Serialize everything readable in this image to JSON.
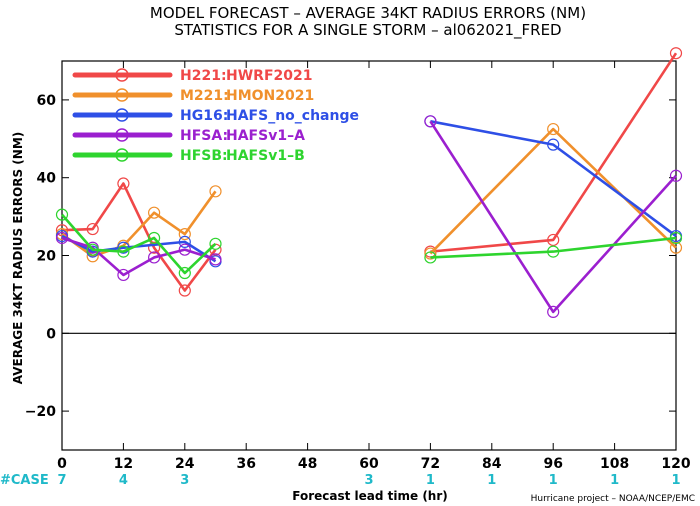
{
  "title_line1": "MODEL FORECAST – AVERAGE 34KT RADIUS ERRORS (NM)",
  "title_line2": "STATISTICS FOR A SINGLE STORM – al062021_FRED",
  "credit": "Hurricane project – NOAA/NCEP/EMC",
  "case_prefix": "#CASE",
  "chart_data": {
    "type": "line",
    "xlabel": "Forecast lead time (hr)",
    "ylabel": "AVERAGE 34KT RADIUS ERRORS (NM)",
    "xlim": [
      0,
      120
    ],
    "ylim": [
      -30,
      70
    ],
    "xticks": [
      0,
      12,
      24,
      36,
      48,
      60,
      72,
      84,
      96,
      108,
      120
    ],
    "yticks": [
      -20,
      0,
      20,
      40,
      60
    ],
    "zero_line": true,
    "grid": false,
    "legend_position": "top-left",
    "cases": [
      {
        "x": 0,
        "label": "7"
      },
      {
        "x": 12,
        "label": "4"
      },
      {
        "x": 24,
        "label": "3"
      },
      {
        "x": 60,
        "label": "3"
      },
      {
        "x": 72,
        "label": "1"
      },
      {
        "x": 84,
        "label": "1"
      },
      {
        "x": 96,
        "label": "1"
      },
      {
        "x": 108,
        "label": "1"
      },
      {
        "x": 120,
        "label": "1"
      }
    ],
    "series": [
      {
        "name": "H221:",
        "desc": "HWRF2021",
        "color": "#f04848",
        "segments": [
          [
            [
              0,
              26.5
            ],
            [
              6,
              26.8
            ],
            [
              12,
              38.5
            ],
            [
              18,
              22
            ],
            [
              24,
              11
            ],
            [
              30,
              21.5
            ]
          ],
          [
            [
              72,
              21
            ],
            [
              96,
              24
            ],
            [
              120,
              72
            ]
          ]
        ]
      },
      {
        "name": "M221:",
        "desc": "HMON2021",
        "color": "#f0902c",
        "segments": [
          [
            [
              0,
              25.5
            ],
            [
              6,
              19.8
            ],
            [
              12,
              22.5
            ],
            [
              18,
              31
            ],
            [
              24,
              25.5
            ],
            [
              30,
              36.5
            ]
          ],
          [
            [
              72,
              20.5
            ],
            [
              96,
              52.5
            ],
            [
              120,
              22
            ]
          ]
        ]
      },
      {
        "name": "HG16:",
        "desc": "HAFS_no_change",
        "color": "#2e4fe6",
        "segments": [
          [
            [
              0,
              25
            ],
            [
              6,
              21
            ],
            [
              12,
              22
            ],
            [
              24,
              23.5
            ],
            [
              30,
              18.5
            ]
          ],
          [
            [
              72,
              54.5
            ],
            [
              96,
              48.5
            ],
            [
              120,
              25
            ]
          ]
        ]
      },
      {
        "name": "HFSA:",
        "desc": "HAFSv1–A",
        "color": "#9b1fcf",
        "segments": [
          [
            [
              0,
              24.5
            ],
            [
              6,
              22
            ],
            [
              12,
              15
            ],
            [
              18,
              19.5
            ],
            [
              24,
              21.5
            ],
            [
              30,
              19
            ]
          ],
          [
            [
              72,
              54.5
            ],
            [
              96,
              5.5
            ],
            [
              120,
              40.5
            ]
          ]
        ]
      },
      {
        "name": "HFSB:",
        "desc": "HAFSv1–B",
        "color": "#2ed42e",
        "segments": [
          [
            [
              0,
              30.5
            ],
            [
              6,
              21.5
            ],
            [
              12,
              21
            ],
            [
              18,
              24.5
            ],
            [
              24,
              15.5
            ],
            [
              30,
              23
            ]
          ],
          [
            [
              72,
              19.5
            ],
            [
              96,
              21
            ],
            [
              120,
              24.5
            ]
          ]
        ]
      }
    ]
  }
}
